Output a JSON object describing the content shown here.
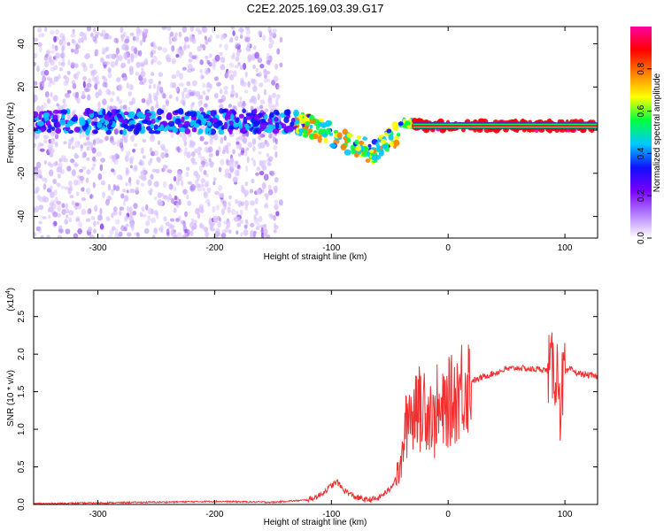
{
  "title": "C2E2.2025.169.03.39.G17",
  "chart_data": [
    {
      "type": "heatmap",
      "name": "spectrogram",
      "xlabel": "Height of straight line (km)",
      "ylabel": "Frequency (Hz)",
      "xlim": [
        -355,
        128
      ],
      "ylim": [
        -50,
        48
      ],
      "x_ticks": [
        -300,
        -200,
        -100,
        0,
        100
      ],
      "y_ticks": [
        -40,
        -20,
        0,
        20,
        40
      ],
      "x_tick_labels": [
        "-300",
        "-200",
        "-100",
        "0",
        "100"
      ],
      "y_tick_labels": [
        "-40",
        "-20",
        "0",
        "20",
        "40"
      ],
      "colorbar": {
        "label": "Normalized spectral amplitude",
        "range": [
          0,
          1
        ],
        "ticks": [
          0.0,
          0.2,
          0.4,
          0.6,
          0.8
        ],
        "tick_labels": [
          "0.0",
          "0.2",
          "0.4",
          "0.6",
          "0.8"
        ],
        "colors": [
          "#ffffff",
          "#b480ff",
          "#7a00ff",
          "#1010ff",
          "#00c8ff",
          "#00ff40",
          "#ffff00",
          "#ff8000",
          "#ff0000",
          "#ff00a0"
        ]
      },
      "ridge": {
        "x": [
          -355,
          -300,
          -250,
          -200,
          -150,
          -140,
          -120,
          -100,
          -90,
          -80,
          -70,
          -60,
          -55,
          -45,
          -40,
          -35,
          -30,
          -20,
          -10,
          0,
          20,
          50,
          85,
          90,
          95,
          128
        ],
        "y": [
          4,
          4,
          4,
          4,
          4,
          4,
          2,
          -2,
          -5,
          -7,
          -9,
          -10,
          -5,
          -2,
          2,
          4,
          3,
          2,
          2,
          2,
          2,
          2,
          2,
          2,
          2,
          2
        ]
      }
    },
    {
      "type": "line",
      "name": "snr",
      "xlabel": "Height of straight line (km)",
      "ylabel": "SNR (10 * v/v)",
      "y_multiplier_label": "(x10",
      "y_multiplier_exp": "4",
      "xlim": [
        -355,
        128
      ],
      "ylim": [
        0,
        2.85
      ],
      "x_ticks": [
        -300,
        -200,
        -100,
        0,
        100
      ],
      "y_ticks": [
        0.0,
        0.5,
        1.0,
        1.5,
        2.0,
        2.5
      ],
      "x_tick_labels": [
        "-300",
        "-200",
        "-100",
        "0",
        "100"
      ],
      "y_tick_labels": [
        "0.0",
        "0.5",
        "1.0",
        "1.5",
        "2.0",
        "2.5"
      ],
      "color": "#f03030",
      "series": [
        {
          "x": [
            -355,
            -300,
            -250,
            -200,
            -150,
            -120,
            -110,
            -100,
            -95,
            -90,
            -80,
            -70,
            -60,
            -50,
            -45,
            -40,
            -38,
            -35,
            -32,
            -30,
            -28,
            -25,
            -22,
            -20,
            -18,
            -15,
            -12,
            -10,
            -8,
            -5,
            0,
            5,
            10,
            15,
            20,
            25,
            30,
            40,
            50,
            60,
            70,
            80,
            85,
            90,
            95,
            96,
            98,
            100,
            105,
            110,
            120,
            128
          ],
          "y": [
            0.01,
            0.02,
            0.03,
            0.04,
            0.03,
            0.06,
            0.12,
            0.25,
            0.3,
            0.2,
            0.1,
            0.06,
            0.08,
            0.2,
            0.35,
            0.5,
            0.9,
            1.1,
            1.4,
            0.95,
            1.6,
            1.3,
            1.1,
            1.5,
            1.2,
            1.3,
            1.0,
            1.35,
            1.15,
            1.2,
            1.35,
            1.4,
            1.55,
            1.62,
            1.65,
            1.66,
            1.7,
            1.75,
            1.8,
            1.82,
            1.8,
            1.8,
            1.78,
            1.8,
            1.75,
            1.3,
            1.6,
            1.75,
            1.8,
            1.75,
            1.72,
            1.7
          ]
        }
      ]
    }
  ]
}
